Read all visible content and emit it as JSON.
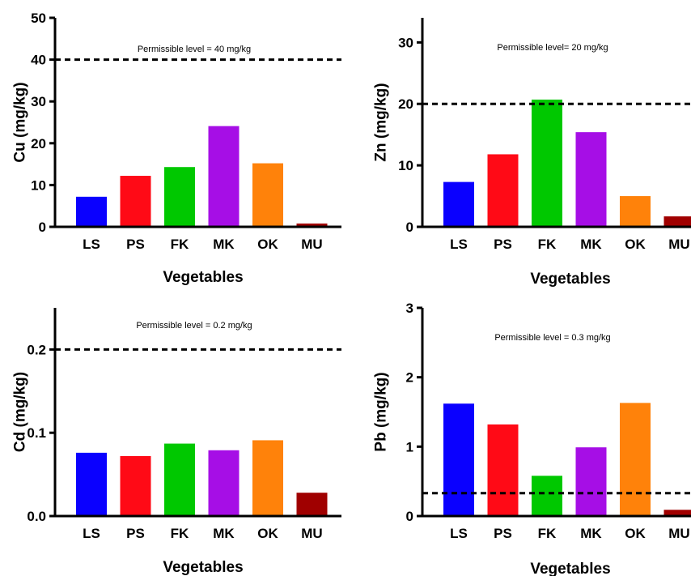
{
  "colors": {
    "LS": "#0a00ff",
    "PS": "#ff0a16",
    "FK": "#00c800",
    "MK": "#a60ee6",
    "OK": "#ff820a",
    "MU": "#a00000"
  },
  "chart_data": [
    {
      "type": "bar",
      "categories": [
        "LS",
        "PS",
        "FK",
        "MK",
        "OK",
        "MU"
      ],
      "values": [
        7.2,
        12.2,
        14.3,
        24.1,
        15.2,
        0.8
      ],
      "xlabel": "Vegetables",
      "ylabel": "Cu (mg/kg)",
      "ylim": [
        0,
        50
      ],
      "yticks": [
        0,
        10,
        20,
        30,
        40,
        50
      ],
      "ytick_labels": [
        "0",
        "10",
        "20",
        "30",
        "40",
        "50"
      ],
      "threshold": 40,
      "annotation": "Permissible level = 40 mg/kg"
    },
    {
      "type": "bar",
      "categories": [
        "LS",
        "PS",
        "FK",
        "MK",
        "OK",
        "MU"
      ],
      "values": [
        7.3,
        11.8,
        20.7,
        15.4,
        5.0,
        1.7
      ],
      "xlabel": "Vegetables",
      "ylabel": "Zn (mg/kg)",
      "ylim": [
        0,
        34
      ],
      "yticks": [
        0,
        10,
        20,
        30
      ],
      "ytick_labels": [
        "0",
        "10",
        "20",
        "30"
      ],
      "threshold": 20,
      "annotation": "Permissible level= 20 mg/kg"
    },
    {
      "type": "bar",
      "categories": [
        "LS",
        "PS",
        "FK",
        "MK",
        "OK",
        "MU"
      ],
      "values": [
        0.076,
        0.072,
        0.087,
        0.079,
        0.091,
        0.028
      ],
      "xlabel": "Vegetables",
      "ylabel": "Cd (mg/kg)",
      "ylim": [
        0,
        0.25
      ],
      "yticks": [
        0,
        0.1,
        0.2
      ],
      "ytick_labels": [
        "0.0",
        "0.1",
        "0.2"
      ],
      "threshold": 0.2,
      "annotation": "Permissible level = 0.2 mg/kg"
    },
    {
      "type": "bar",
      "categories": [
        "LS",
        "PS",
        "FK",
        "MK",
        "OK",
        "MU"
      ],
      "values": [
        1.62,
        1.32,
        0.58,
        0.99,
        1.63,
        0.09
      ],
      "xlabel": "Vegetables",
      "ylabel": "Pb (mg/kg)",
      "ylim": [
        0,
        3
      ],
      "yticks": [
        0,
        1,
        2,
        3
      ],
      "ytick_labels": [
        "0",
        "1",
        "2",
        "3"
      ],
      "threshold": 0.33,
      "annotation": "Permissible level = 0.3 mg/kg"
    }
  ]
}
